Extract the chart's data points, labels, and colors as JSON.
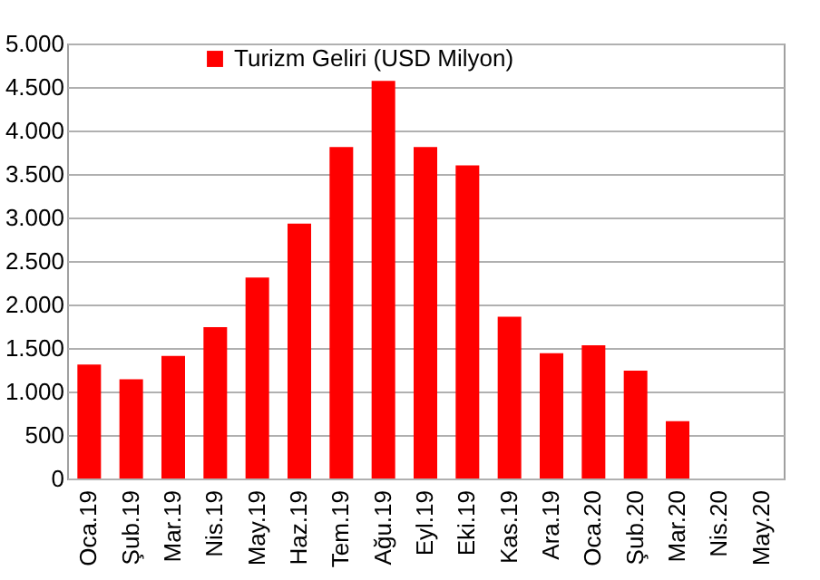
{
  "chart_data": {
    "type": "bar",
    "categories": [
      "Oca.19",
      "Şub.19",
      "Mar.19",
      "Nis.19",
      "May.19",
      "Haz.19",
      "Tem.19",
      "Ağu.19",
      "Eyl.19",
      "Eki.19",
      "Kas.19",
      "Ara.19",
      "Oca.20",
      "Şub.20",
      "Mar.20",
      "Nis.20",
      "May.20"
    ],
    "series": [
      {
        "name": "Turizm Geliri (USD Milyon)",
        "color": "#ff0000",
        "values": [
          1310,
          1140,
          1410,
          1740,
          2310,
          2930,
          3810,
          4570,
          3810,
          3600,
          1860,
          1440,
          1530,
          1240,
          660,
          null,
          null
        ]
      }
    ],
    "ylim": [
      0,
      5000
    ],
    "yticks": [
      {
        "value": 0,
        "label": "0"
      },
      {
        "value": 500,
        "label": "500"
      },
      {
        "value": 1000,
        "label": "1.000"
      },
      {
        "value": 1500,
        "label": "1.500"
      },
      {
        "value": 2000,
        "label": "2.000"
      },
      {
        "value": 2500,
        "label": "2.500"
      },
      {
        "value": 3000,
        "label": "3.000"
      },
      {
        "value": 3500,
        "label": "3.500"
      },
      {
        "value": 4000,
        "label": "4.000"
      },
      {
        "value": 4500,
        "label": "4.500"
      },
      {
        "value": 5000,
        "label": "5.000"
      }
    ],
    "grid": "y",
    "legend": "top"
  }
}
